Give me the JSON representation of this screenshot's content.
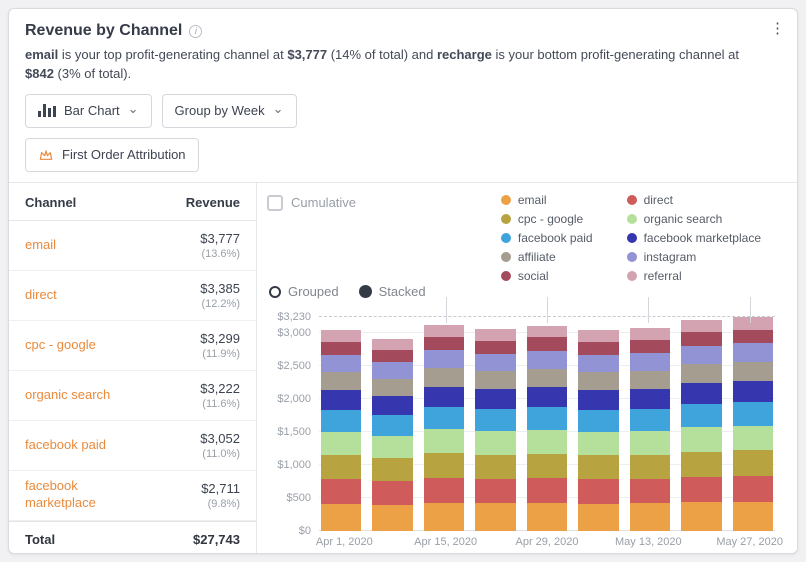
{
  "header": {
    "title": "Revenue by Channel",
    "menu_icon": "⋮",
    "info_icon": "i"
  },
  "summary": {
    "parts": [
      {
        "t": "email",
        "b": true
      },
      {
        "t": " is your top profit-generating channel at ",
        "b": false
      },
      {
        "t": "$3,777",
        "b": true
      },
      {
        "t": " (14% of total) and ",
        "b": false
      },
      {
        "t": "recharge",
        "b": true
      },
      {
        "t": " is your bottom profit-generating channel at ",
        "b": false
      },
      {
        "t": "$842",
        "b": true
      },
      {
        "t": " (3% of total).",
        "b": false
      }
    ]
  },
  "controls": {
    "chart_type_label": "Bar Chart",
    "group_by_label": "Group by Week",
    "attribution_label": "First Order Attribution",
    "accent_color": "#E98A3C"
  },
  "table": {
    "columns": [
      "Channel",
      "Revenue"
    ],
    "rows": [
      {
        "channel": "email",
        "revenue": "$3,777",
        "pct": "(13.6%)"
      },
      {
        "channel": "direct",
        "revenue": "$3,385",
        "pct": "(12.2%)"
      },
      {
        "channel": "cpc - google",
        "revenue": "$3,299",
        "pct": "(11.9%)"
      },
      {
        "channel": "organic search",
        "revenue": "$3,222",
        "pct": "(11.6%)"
      },
      {
        "channel": "facebook paid",
        "revenue": "$3,052",
        "pct": "(11.0%)"
      },
      {
        "channel": "facebook marketplace",
        "revenue": "$2,711",
        "pct": "(9.8%)"
      }
    ],
    "total_label": "Total",
    "total_value": "$27,743"
  },
  "chart_controls": {
    "cumulative_label": "Cumulative",
    "cumulative_checked": false,
    "grouped_label": "Grouped",
    "stacked_label": "Stacked",
    "selected_mode": "stacked"
  },
  "legend": {
    "columns": [
      [
        "email",
        "cpc - google",
        "facebook paid",
        "affiliate",
        "social"
      ],
      [
        "direct",
        "organic search",
        "facebook marketplace",
        "instagram",
        "referral"
      ]
    ]
  },
  "chart_data": {
    "type": "bar",
    "stacked": true,
    "x": [
      "Apr 1, 2020",
      "Apr 8, 2020",
      "Apr 15, 2020",
      "Apr 22, 2020",
      "Apr 29, 2020",
      "May 6, 2020",
      "May 13, 2020",
      "May 20, 2020",
      "May 27, 2020"
    ],
    "x_tick_labels": [
      "Apr 1, 2020",
      "Apr 15, 2020",
      "Apr 29, 2020",
      "May 13, 2020",
      "May 27, 2020"
    ],
    "y_ticks": [
      0,
      500,
      1000,
      1500,
      2000,
      2500,
      3000
    ],
    "y_tick_labels": [
      "$0",
      "$500",
      "$1,000",
      "$1,500",
      "$2,000",
      "$2,500",
      "$3,000"
    ],
    "y_max_line": {
      "value": 3230,
      "label": "$3,230"
    },
    "y_axis_max": 3300,
    "series": [
      {
        "name": "email",
        "color": "#EDA147",
        "values": [
          413,
          396,
          424,
          416,
          423,
          413,
          417,
          434,
          441
        ]
      },
      {
        "name": "direct",
        "color": "#D05B5B",
        "values": [
          370,
          355,
          380,
          373,
          379,
          370,
          374,
          389,
          395
        ]
      },
      {
        "name": "cpc - google",
        "color": "#B7A441",
        "values": [
          361,
          346,
          371,
          363,
          369,
          361,
          365,
          379,
          384
        ]
      },
      {
        "name": "organic search",
        "color": "#B5E09B",
        "values": [
          353,
          337,
          362,
          355,
          361,
          353,
          356,
          370,
          375
        ]
      },
      {
        "name": "facebook paid",
        "color": "#3FA3DC",
        "values": [
          334,
          320,
          343,
          336,
          342,
          334,
          337,
          350,
          356
        ]
      },
      {
        "name": "facebook marketplace",
        "color": "#3636AE",
        "values": [
          297,
          284,
          305,
          299,
          303,
          297,
          300,
          311,
          315
        ]
      },
      {
        "name": "affiliate",
        "color": "#A59D90",
        "values": [
          274,
          262,
          281,
          275,
          280,
          274,
          276,
          287,
          291
        ]
      },
      {
        "name": "instagram",
        "color": "#9193D4",
        "values": [
          263,
          251,
          270,
          264,
          269,
          263,
          265,
          276,
          279
        ]
      },
      {
        "name": "social",
        "color": "#A34B5C",
        "values": [
          197,
          189,
          202,
          198,
          202,
          197,
          199,
          207,
          209
        ]
      },
      {
        "name": "referral",
        "color": "#D4A3B2",
        "values": [
          175,
          168,
          180,
          176,
          179,
          175,
          177,
          184,
          186
        ]
      }
    ]
  }
}
